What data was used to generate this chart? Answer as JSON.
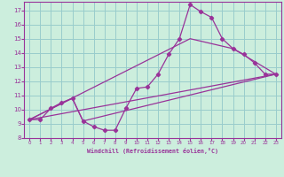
{
  "xlabel": "Windchill (Refroidissement éolien,°C)",
  "background_color": "#cceedd",
  "grid_color": "#99cccc",
  "line_color": "#993399",
  "xlim": [
    -0.5,
    23.5
  ],
  "ylim": [
    8.0,
    17.6
  ],
  "yticks": [
    8,
    9,
    10,
    11,
    12,
    13,
    14,
    15,
    16,
    17
  ],
  "xticks": [
    0,
    1,
    2,
    3,
    4,
    5,
    6,
    7,
    8,
    9,
    10,
    11,
    12,
    13,
    14,
    15,
    16,
    17,
    18,
    19,
    20,
    21,
    22,
    23
  ],
  "line1_x": [
    0,
    1,
    2,
    3,
    4,
    5,
    6,
    7,
    8,
    9,
    10,
    11,
    12,
    13,
    14,
    15,
    16,
    17,
    18,
    19,
    20,
    21,
    22,
    23
  ],
  "line1_y": [
    9.3,
    9.3,
    10.1,
    10.5,
    10.8,
    9.2,
    8.8,
    8.55,
    8.55,
    10.1,
    11.5,
    11.6,
    12.5,
    13.9,
    15.0,
    17.4,
    16.9,
    16.5,
    15.0,
    14.3,
    13.9,
    13.3,
    12.5,
    12.5
  ],
  "line2_x": [
    0,
    4,
    5,
    23
  ],
  "line2_y": [
    9.3,
    10.8,
    9.2,
    12.5
  ],
  "line3_x": [
    0,
    23
  ],
  "line3_y": [
    9.3,
    12.5
  ],
  "line4_x": [
    0,
    15,
    19,
    23
  ],
  "line4_y": [
    9.3,
    15.0,
    14.3,
    12.5
  ]
}
